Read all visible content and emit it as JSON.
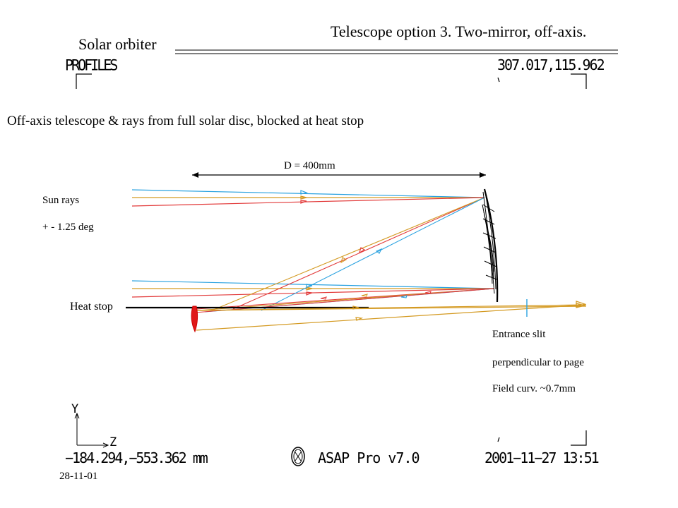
{
  "header": {
    "title": "Telescope option 3. Two-mirror, off-axis.",
    "project": "Solar orbiter",
    "plot_label": "PROFILES",
    "view_coords_top": "307.017,115.962"
  },
  "diagram": {
    "subtitle": "Off-axis telescope & rays from full solar disc, blocked at heat stop",
    "dimension_label": "D = 400mm",
    "sun_rays_label": "Sun rays",
    "sun_rays_angle": "+ - 1.25 deg",
    "heat_stop_label": "Heat stop",
    "note_line1": "Entrance slit",
    "note_line2": "perpendicular to page",
    "note_line3": "Field curv. ~0.7mm",
    "colors": {
      "blue": "#2aa2e0",
      "red": "#e23a3a",
      "orange": "#d49a22",
      "mirror": "#000000",
      "secondary_mirror": "#e01818"
    }
  },
  "footer": {
    "coords": "−184.294,−553.362 mm",
    "software": "ASAP Pro v7.0",
    "datetime": "2001−11−27 13:51",
    "date_small": "28-11-01",
    "axis_y": "Y",
    "axis_z": "Z",
    "logo_icon": "breault-logo-icon"
  }
}
